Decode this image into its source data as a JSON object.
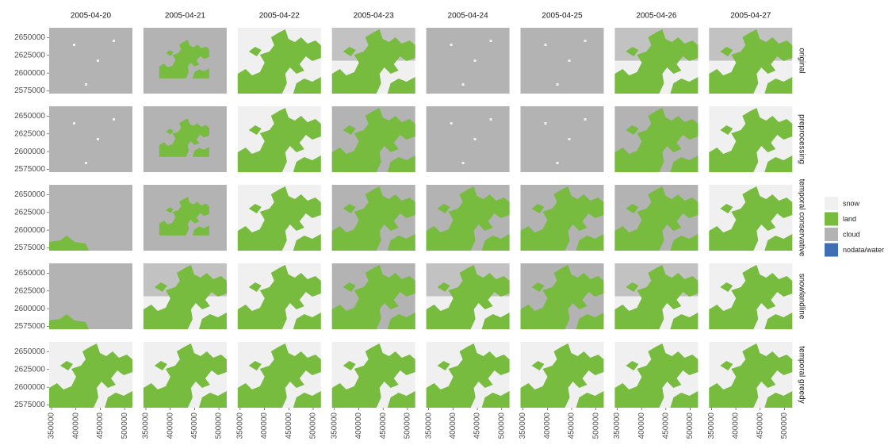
{
  "column_labels": [
    "2005-04-20",
    "2005-04-21",
    "2005-04-22",
    "2005-04-23",
    "2005-04-24",
    "2005-04-25",
    "2005-04-26",
    "2005-04-27"
  ],
  "row_labels": [
    "original",
    "preprocessing",
    "temporal conservative",
    "snowlandline",
    "temporal greedy"
  ],
  "y_axis": {
    "lim": [
      2571000,
      2664000
    ],
    "ticks": [
      2650000,
      2625000,
      2600000,
      2575000
    ]
  },
  "x_axis": {
    "lim": [
      345000,
      516000
    ],
    "ticks": [
      350000,
      400000,
      450000,
      500000
    ]
  },
  "legend": [
    {
      "label": "snow",
      "color": "#f0f0f0"
    },
    {
      "label": "land",
      "color": "#77bb3f"
    },
    {
      "label": "cloud",
      "color": "#b3b3b3"
    },
    {
      "label": "nodata/water",
      "color": "#3f6eb5"
    }
  ]
}
